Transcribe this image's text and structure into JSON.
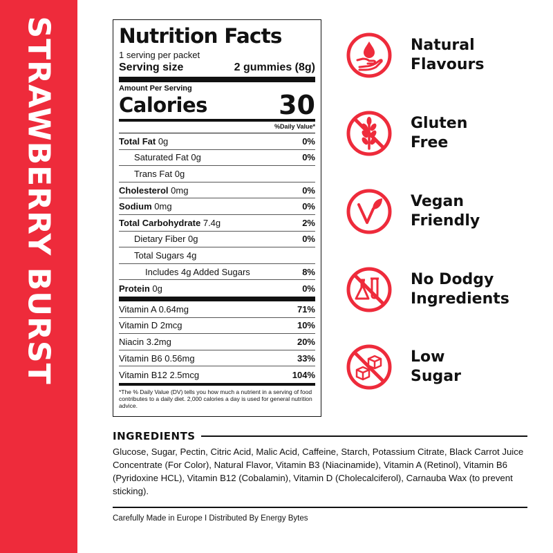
{
  "side_title": "STRAWBERRY BURST",
  "colors": {
    "brand_red": "#ee2b3b",
    "text": "#111111"
  },
  "nutrition": {
    "title": "Nutrition Facts",
    "servings": "1 serving per packet",
    "serving_size_label": "Serving size",
    "serving_size_value": "2 gummies (8g)",
    "amount_per_serving": "Amount Per Serving",
    "calories_label": "Calories",
    "calories_value": "30",
    "daily_value_header": "%Daily Value*",
    "rows": [
      {
        "label": "Total Fat",
        "amount": "0g",
        "pct": "0%"
      },
      {
        "label": "Saturated Fat 0g",
        "pct": "0%"
      },
      {
        "label": "Trans Fat 0g",
        "pct": ""
      },
      {
        "label": "Cholesterol",
        "amount": "0mg",
        "pct": "0%"
      },
      {
        "label": "Sodium",
        "amount": "0mg",
        "pct": "0%"
      },
      {
        "label": "Total Carbohydrate",
        "amount": "7.4g",
        "pct": "2%"
      },
      {
        "label": "Dietary Fiber 0g",
        "pct": "0%"
      },
      {
        "label": "Total Sugars 4g",
        "pct": ""
      },
      {
        "label": "Includes 4g Added Sugars",
        "pct": "8%"
      },
      {
        "label": "Protein",
        "amount": "0g",
        "pct": "0%"
      }
    ],
    "vitamins": [
      {
        "label": "Vitamin A 0.64mg",
        "pct": "71%"
      },
      {
        "label": "Vitamin D 2mcg",
        "pct": "10%"
      },
      {
        "label": "Niacin 3.2mg",
        "pct": "20%"
      },
      {
        "label": "Vitamin B6 0.56mg",
        "pct": "33%"
      },
      {
        "label": "Vitamin B12 2.5mcg",
        "pct": "104%"
      }
    ],
    "footnote": "*The % Daily Value (DV) tells you how much a nutrient in a serving of food contributes to a daily diet. 2,000 calories a day is used for general nutrition advice."
  },
  "features": [
    {
      "line1": "Natural",
      "line2": "Flavours",
      "icon": "drop-hand-icon"
    },
    {
      "line1": "Gluten",
      "line2": "Free",
      "icon": "no-wheat-icon"
    },
    {
      "line1": "Vegan",
      "line2": "Friendly",
      "icon": "vegan-leaf-icon"
    },
    {
      "line1": "No Dodgy",
      "line2": "Ingredients",
      "icon": "no-lab-flask-icon"
    },
    {
      "line1": "Low",
      "line2": "Sugar",
      "icon": "no-sugar-cube-icon"
    }
  ],
  "ingredients": {
    "heading": "INGREDIENTS",
    "text": "Glucose, Sugar, Pectin, Citric Acid, Malic Acid, Caffeine, Starch, Potassium Citrate, Black Carrot Juice Concentrate (For Color), Natural Flavor, Vitamin B3 (Niacinamide), Vitamin A (Retinol), Vitamin B6 (Pyridoxine HCL), Vitamin B12 (Cobalamin), Vitamin D (Cholecalciferol), Carnauba Wax (to prevent sticking)."
  },
  "footer": "Carefully Made in Europe I Distributed By Energy Bytes"
}
